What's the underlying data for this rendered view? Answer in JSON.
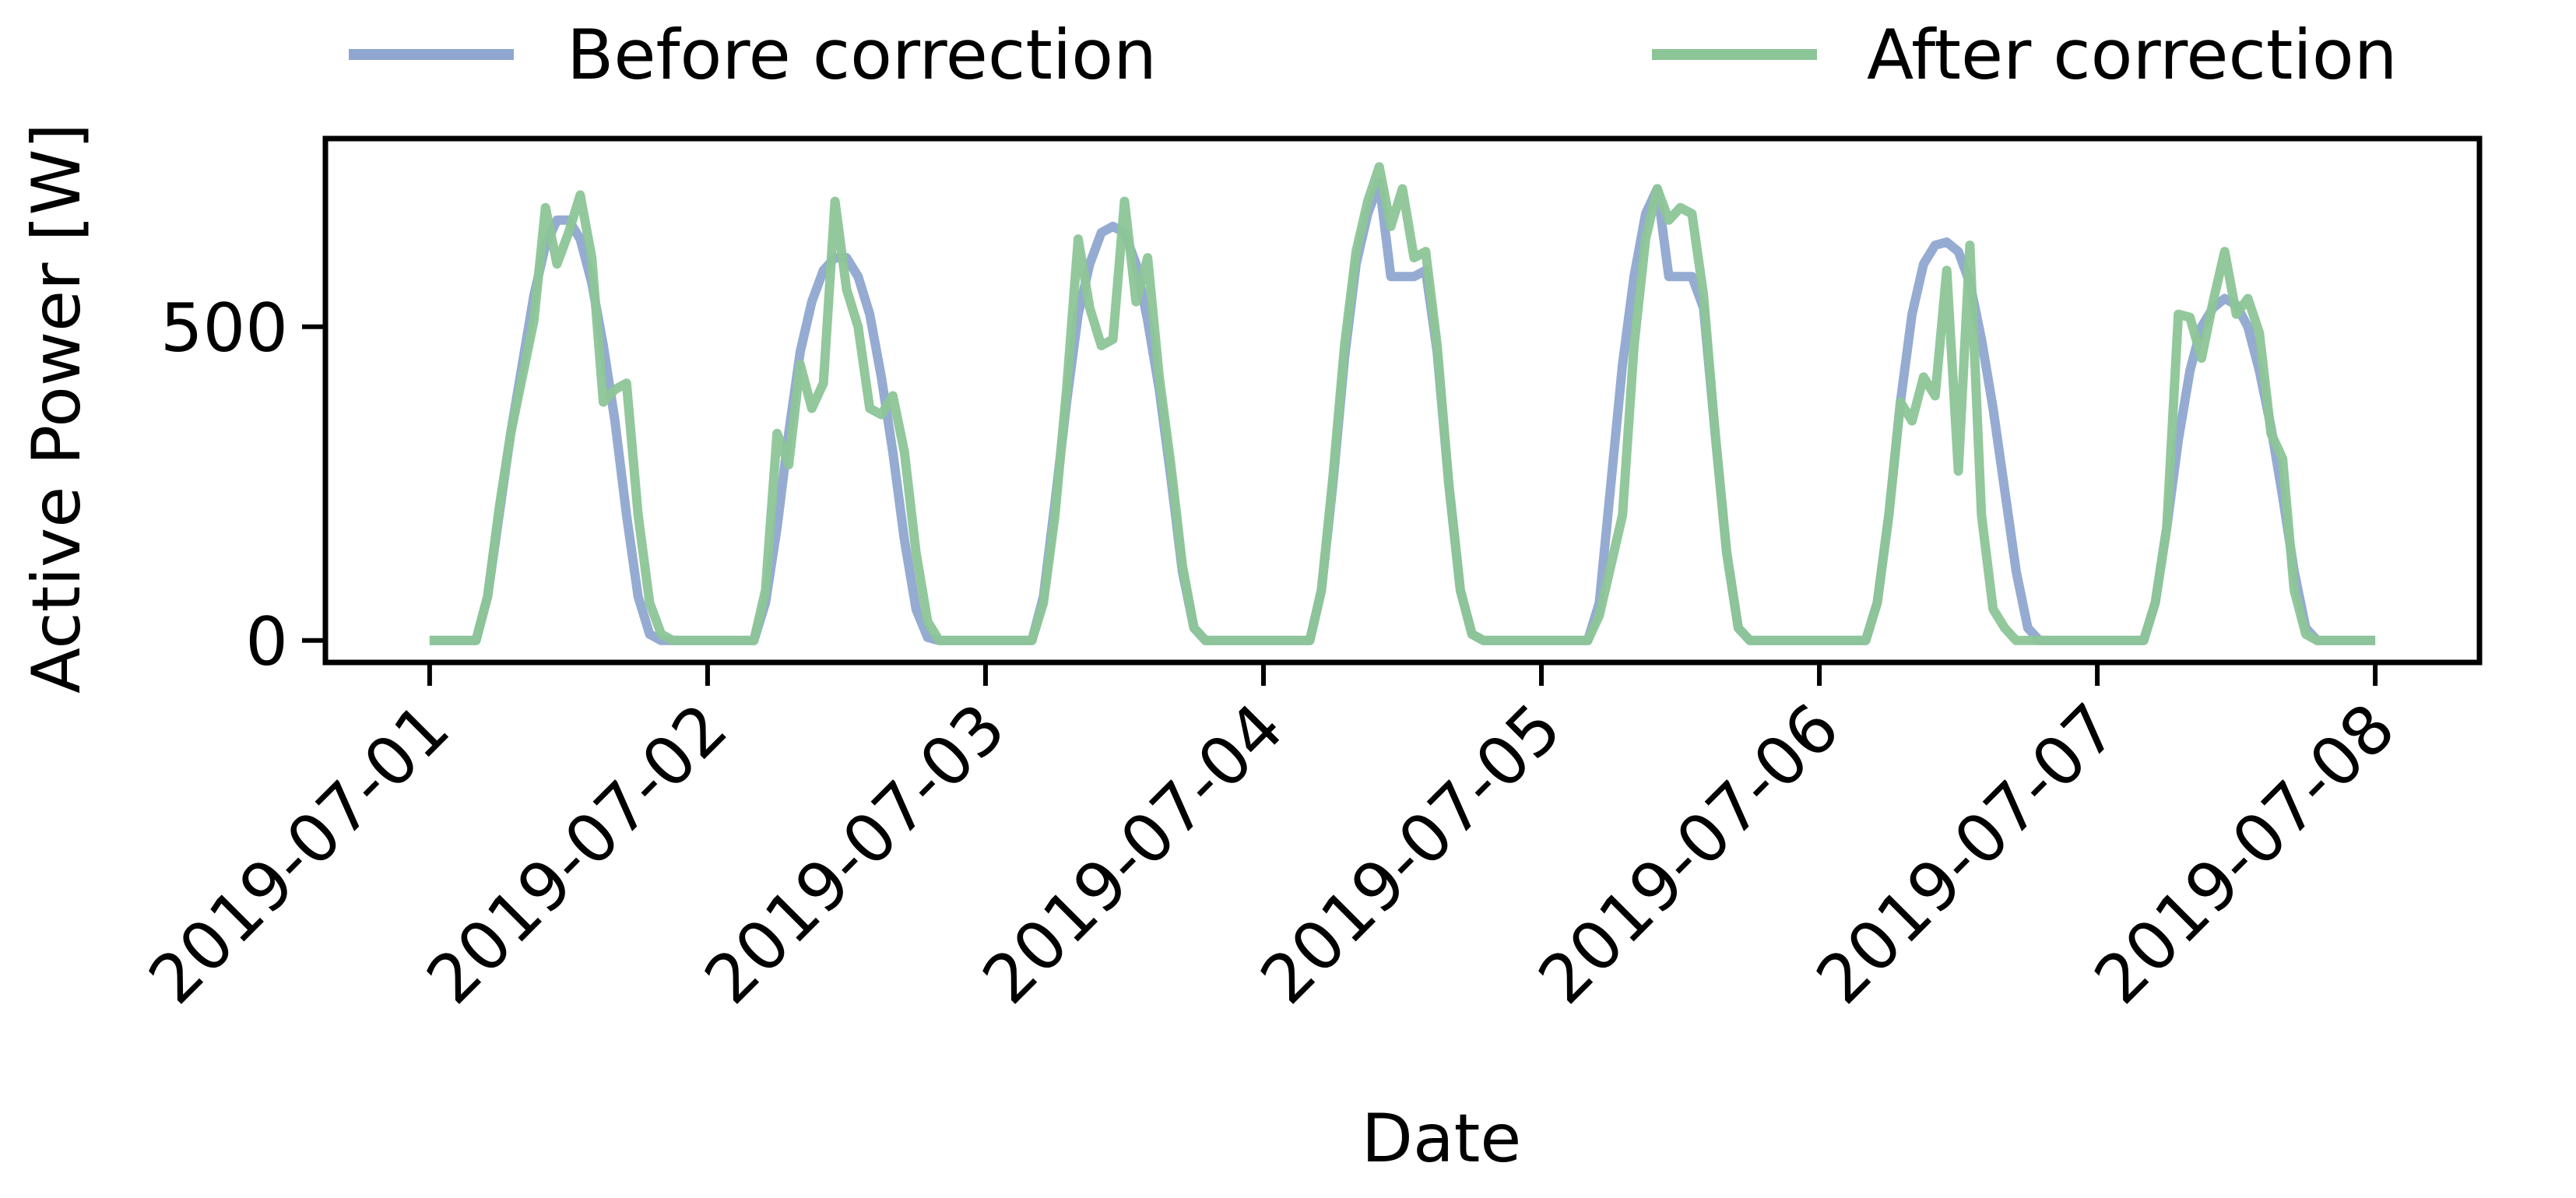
{
  "chart_data": {
    "type": "line",
    "title": "",
    "xlabel": "Date",
    "ylabel": "Active Power [W]",
    "xlim": [
      "2019-06-30T15:00",
      "2019-07-08T09:00"
    ],
    "ylim": [
      -35,
      800
    ],
    "x_ticks": [
      "2019-07-01",
      "2019-07-02",
      "2019-07-03",
      "2019-07-04",
      "2019-07-05",
      "2019-07-06",
      "2019-07-07",
      "2019-07-08"
    ],
    "y_ticks": [
      0,
      500
    ],
    "grid": false,
    "legend": {
      "position": "top",
      "columns": 2
    },
    "series": [
      {
        "name": "Before correction",
        "color": "#8fa6d0",
        "points": [
          [
            "2019-07-01T00:00",
            0
          ],
          [
            "2019-07-01T04:00",
            0
          ],
          [
            "2019-07-01T05:00",
            70
          ],
          [
            "2019-07-01T06:00",
            200
          ],
          [
            "2019-07-01T07:00",
            330
          ],
          [
            "2019-07-01T08:00",
            440
          ],
          [
            "2019-07-01T09:00",
            550
          ],
          [
            "2019-07-01T10:00",
            630
          ],
          [
            "2019-07-01T11:00",
            670
          ],
          [
            "2019-07-01T12:00",
            670
          ],
          [
            "2019-07-01T13:00",
            640
          ],
          [
            "2019-07-01T14:00",
            570
          ],
          [
            "2019-07-01T15:00",
            470
          ],
          [
            "2019-07-01T16:00",
            350
          ],
          [
            "2019-07-01T17:00",
            200
          ],
          [
            "2019-07-01T18:00",
            70
          ],
          [
            "2019-07-01T19:00",
            10
          ],
          [
            "2019-07-01T20:00",
            0
          ],
          [
            "2019-07-02T04:00",
            0
          ],
          [
            "2019-07-02T05:00",
            60
          ],
          [
            "2019-07-02T06:00",
            180
          ],
          [
            "2019-07-02T07:00",
            330
          ],
          [
            "2019-07-02T08:00",
            460
          ],
          [
            "2019-07-02T09:00",
            540
          ],
          [
            "2019-07-02T10:00",
            590
          ],
          [
            "2019-07-02T11:00",
            610
          ],
          [
            "2019-07-02T12:00",
            610
          ],
          [
            "2019-07-02T13:00",
            580
          ],
          [
            "2019-07-02T14:00",
            520
          ],
          [
            "2019-07-02T15:00",
            420
          ],
          [
            "2019-07-02T16:00",
            300
          ],
          [
            "2019-07-02T17:00",
            160
          ],
          [
            "2019-07-02T18:00",
            50
          ],
          [
            "2019-07-02T19:00",
            5
          ],
          [
            "2019-07-02T20:00",
            0
          ],
          [
            "2019-07-03T04:00",
            0
          ],
          [
            "2019-07-03T05:00",
            70
          ],
          [
            "2019-07-03T06:00",
            220
          ],
          [
            "2019-07-03T07:00",
            380
          ],
          [
            "2019-07-03T08:00",
            520
          ],
          [
            "2019-07-03T09:00",
            600
          ],
          [
            "2019-07-03T10:00",
            650
          ],
          [
            "2019-07-03T11:00",
            660
          ],
          [
            "2019-07-03T12:00",
            650
          ],
          [
            "2019-07-03T13:00",
            600
          ],
          [
            "2019-07-03T14:00",
            510
          ],
          [
            "2019-07-03T15:00",
            400
          ],
          [
            "2019-07-03T16:00",
            260
          ],
          [
            "2019-07-03T17:00",
            110
          ],
          [
            "2019-07-03T18:00",
            20
          ],
          [
            "2019-07-03T19:00",
            0
          ],
          [
            "2019-07-04T04:00",
            0
          ],
          [
            "2019-07-04T05:00",
            80
          ],
          [
            "2019-07-04T06:00",
            250
          ],
          [
            "2019-07-04T07:00",
            450
          ],
          [
            "2019-07-04T08:00",
            600
          ],
          [
            "2019-07-04T09:00",
            680
          ],
          [
            "2019-07-04T10:00",
            730
          ],
          [
            "2019-07-04T11:00",
            580
          ],
          [
            "2019-07-04T12:00",
            580
          ],
          [
            "2019-07-04T13:00",
            580
          ],
          [
            "2019-07-04T14:00",
            590
          ],
          [
            "2019-07-04T15:00",
            460
          ],
          [
            "2019-07-04T16:00",
            250
          ],
          [
            "2019-07-04T17:00",
            80
          ],
          [
            "2019-07-04T18:00",
            10
          ],
          [
            "2019-07-04T19:00",
            0
          ],
          [
            "2019-07-05T04:00",
            0
          ],
          [
            "2019-07-05T05:00",
            60
          ],
          [
            "2019-07-05T06:00",
            250
          ],
          [
            "2019-07-05T07:00",
            440
          ],
          [
            "2019-07-05T08:00",
            580
          ],
          [
            "2019-07-05T09:00",
            680
          ],
          [
            "2019-07-05T10:00",
            720
          ],
          [
            "2019-07-05T11:00",
            580
          ],
          [
            "2019-07-05T12:00",
            580
          ],
          [
            "2019-07-05T13:00",
            580
          ],
          [
            "2019-07-05T14:00",
            530
          ],
          [
            "2019-07-05T15:00",
            330
          ],
          [
            "2019-07-05T16:00",
            140
          ],
          [
            "2019-07-05T17:00",
            20
          ],
          [
            "2019-07-05T18:00",
            0
          ],
          [
            "2019-07-06T04:00",
            0
          ],
          [
            "2019-07-06T05:00",
            60
          ],
          [
            "2019-07-06T06:00",
            200
          ],
          [
            "2019-07-06T07:00",
            380
          ],
          [
            "2019-07-06T08:00",
            520
          ],
          [
            "2019-07-06T09:00",
            600
          ],
          [
            "2019-07-06T10:00",
            630
          ],
          [
            "2019-07-06T11:00",
            635
          ],
          [
            "2019-07-06T12:00",
            620
          ],
          [
            "2019-07-06T13:00",
            570
          ],
          [
            "2019-07-06T14:00",
            480
          ],
          [
            "2019-07-06T15:00",
            370
          ],
          [
            "2019-07-06T16:00",
            240
          ],
          [
            "2019-07-06T17:00",
            110
          ],
          [
            "2019-07-06T18:00",
            20
          ],
          [
            "2019-07-06T19:00",
            0
          ],
          [
            "2019-07-07T04:00",
            0
          ],
          [
            "2019-07-07T05:00",
            60
          ],
          [
            "2019-07-07T06:00",
            180
          ],
          [
            "2019-07-07T07:00",
            320
          ],
          [
            "2019-07-07T08:00",
            430
          ],
          [
            "2019-07-07T09:00",
            500
          ],
          [
            "2019-07-07T10:00",
            530
          ],
          [
            "2019-07-07T11:00",
            545
          ],
          [
            "2019-07-07T12:00",
            535
          ],
          [
            "2019-07-07T13:00",
            500
          ],
          [
            "2019-07-07T14:00",
            430
          ],
          [
            "2019-07-07T15:00",
            340
          ],
          [
            "2019-07-07T16:00",
            230
          ],
          [
            "2019-07-07T17:00",
            110
          ],
          [
            "2019-07-07T18:00",
            20
          ],
          [
            "2019-07-07T19:00",
            0
          ],
          [
            "2019-07-08T00:00",
            0
          ]
        ]
      },
      {
        "name": "After correction",
        "color": "#8cc597",
        "points": [
          [
            "2019-07-01T00:00",
            0
          ],
          [
            "2019-07-01T04:00",
            0
          ],
          [
            "2019-07-01T05:00",
            70
          ],
          [
            "2019-07-01T06:00",
            210
          ],
          [
            "2019-07-01T07:00",
            330
          ],
          [
            "2019-07-01T08:00",
            420
          ],
          [
            "2019-07-01T09:00",
            510
          ],
          [
            "2019-07-01T10:00",
            690
          ],
          [
            "2019-07-01T11:00",
            600
          ],
          [
            "2019-07-01T12:00",
            650
          ],
          [
            "2019-07-01T13:00",
            710
          ],
          [
            "2019-07-01T14:00",
            610
          ],
          [
            "2019-07-01T15:00",
            380
          ],
          [
            "2019-07-01T16:00",
            400
          ],
          [
            "2019-07-01T17:00",
            410
          ],
          [
            "2019-07-01T18:00",
            200
          ],
          [
            "2019-07-01T19:00",
            60
          ],
          [
            "2019-07-01T20:00",
            10
          ],
          [
            "2019-07-01T21:00",
            0
          ],
          [
            "2019-07-02T04:00",
            0
          ],
          [
            "2019-07-02T05:00",
            80
          ],
          [
            "2019-07-02T06:00",
            330
          ],
          [
            "2019-07-02T07:00",
            280
          ],
          [
            "2019-07-02T08:00",
            440
          ],
          [
            "2019-07-02T09:00",
            370
          ],
          [
            "2019-07-02T10:00",
            410
          ],
          [
            "2019-07-02T11:00",
            700
          ],
          [
            "2019-07-02T12:00",
            560
          ],
          [
            "2019-07-02T13:00",
            500
          ],
          [
            "2019-07-02T14:00",
            370
          ],
          [
            "2019-07-02T15:00",
            360
          ],
          [
            "2019-07-02T16:00",
            390
          ],
          [
            "2019-07-02T17:00",
            300
          ],
          [
            "2019-07-02T18:00",
            140
          ],
          [
            "2019-07-02T19:00",
            30
          ],
          [
            "2019-07-02T20:00",
            0
          ],
          [
            "2019-07-03T04:00",
            0
          ],
          [
            "2019-07-03T05:00",
            60
          ],
          [
            "2019-07-03T06:00",
            200
          ],
          [
            "2019-07-03T07:00",
            400
          ],
          [
            "2019-07-03T08:00",
            640
          ],
          [
            "2019-07-03T09:00",
            530
          ],
          [
            "2019-07-03T10:00",
            470
          ],
          [
            "2019-07-03T11:00",
            480
          ],
          [
            "2019-07-03T12:00",
            700
          ],
          [
            "2019-07-03T13:00",
            540
          ],
          [
            "2019-07-03T14:00",
            610
          ],
          [
            "2019-07-03T15:00",
            420
          ],
          [
            "2019-07-03T16:00",
            280
          ],
          [
            "2019-07-03T17:00",
            120
          ],
          [
            "2019-07-03T18:00",
            20
          ],
          [
            "2019-07-03T19:00",
            0
          ],
          [
            "2019-07-04T04:00",
            0
          ],
          [
            "2019-07-04T05:00",
            80
          ],
          [
            "2019-07-04T06:00",
            260
          ],
          [
            "2019-07-04T07:00",
            470
          ],
          [
            "2019-07-04T08:00",
            620
          ],
          [
            "2019-07-04T09:00",
            700
          ],
          [
            "2019-07-04T10:00",
            755
          ],
          [
            "2019-07-04T11:00",
            660
          ],
          [
            "2019-07-04T12:00",
            720
          ],
          [
            "2019-07-04T13:00",
            610
          ],
          [
            "2019-07-04T14:00",
            620
          ],
          [
            "2019-07-04T15:00",
            470
          ],
          [
            "2019-07-04T16:00",
            250
          ],
          [
            "2019-07-04T17:00",
            80
          ],
          [
            "2019-07-04T18:00",
            10
          ],
          [
            "2019-07-04T19:00",
            0
          ],
          [
            "2019-07-05T04:00",
            0
          ],
          [
            "2019-07-05T05:00",
            40
          ],
          [
            "2019-07-05T06:00",
            120
          ],
          [
            "2019-07-05T07:00",
            200
          ],
          [
            "2019-07-05T08:00",
            470
          ],
          [
            "2019-07-05T09:00",
            640
          ],
          [
            "2019-07-05T10:00",
            720
          ],
          [
            "2019-07-05T11:00",
            670
          ],
          [
            "2019-07-05T12:00",
            690
          ],
          [
            "2019-07-05T13:00",
            680
          ],
          [
            "2019-07-05T14:00",
            550
          ],
          [
            "2019-07-05T15:00",
            330
          ],
          [
            "2019-07-05T16:00",
            140
          ],
          [
            "2019-07-05T17:00",
            20
          ],
          [
            "2019-07-05T18:00",
            0
          ],
          [
            "2019-07-06T04:00",
            0
          ],
          [
            "2019-07-06T05:00",
            60
          ],
          [
            "2019-07-06T06:00",
            200
          ],
          [
            "2019-07-06T07:00",
            380
          ],
          [
            "2019-07-06T08:00",
            350
          ],
          [
            "2019-07-06T09:00",
            420
          ],
          [
            "2019-07-06T10:00",
            390
          ],
          [
            "2019-07-06T11:00",
            590
          ],
          [
            "2019-07-06T12:00",
            270
          ],
          [
            "2019-07-06T13:00",
            630
          ],
          [
            "2019-07-06T14:00",
            200
          ],
          [
            "2019-07-06T15:00",
            50
          ],
          [
            "2019-07-06T16:00",
            20
          ],
          [
            "2019-07-06T17:00",
            0
          ],
          [
            "2019-07-07T04:00",
            0
          ],
          [
            "2019-07-07T05:00",
            60
          ],
          [
            "2019-07-07T06:00",
            180
          ],
          [
            "2019-07-07T07:00",
            520
          ],
          [
            "2019-07-07T08:00",
            515
          ],
          [
            "2019-07-07T09:00",
            450
          ],
          [
            "2019-07-07T10:00",
            540
          ],
          [
            "2019-07-07T11:00",
            620
          ],
          [
            "2019-07-07T12:00",
            520
          ],
          [
            "2019-07-07T13:00",
            545
          ],
          [
            "2019-07-07T14:00",
            490
          ],
          [
            "2019-07-07T15:00",
            330
          ],
          [
            "2019-07-07T16:00",
            290
          ],
          [
            "2019-07-07T17:00",
            80
          ],
          [
            "2019-07-07T18:00",
            10
          ],
          [
            "2019-07-07T19:00",
            0
          ],
          [
            "2019-07-08T00:00",
            0
          ]
        ]
      }
    ]
  }
}
